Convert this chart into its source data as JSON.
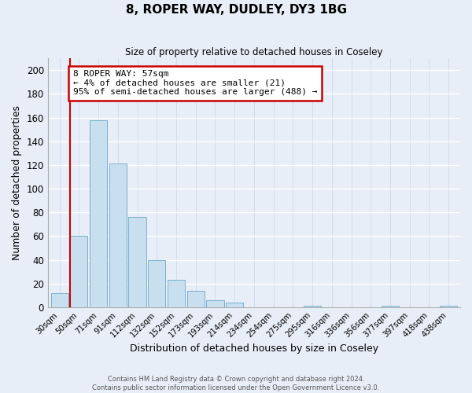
{
  "title": "8, ROPER WAY, DUDLEY, DY3 1BG",
  "subtitle": "Size of property relative to detached houses in Coseley",
  "xlabel": "Distribution of detached houses by size in Coseley",
  "ylabel": "Number of detached properties",
  "bar_labels": [
    "30sqm",
    "50sqm",
    "71sqm",
    "91sqm",
    "112sqm",
    "132sqm",
    "152sqm",
    "173sqm",
    "193sqm",
    "214sqm",
    "234sqm",
    "254sqm",
    "275sqm",
    "295sqm",
    "316sqm",
    "336sqm",
    "356sqm",
    "377sqm",
    "397sqm",
    "418sqm",
    "438sqm"
  ],
  "bar_heights": [
    12,
    60,
    158,
    121,
    76,
    40,
    23,
    14,
    6,
    4,
    0,
    0,
    0,
    1,
    0,
    0,
    0,
    1,
    0,
    0,
    1
  ],
  "bar_color": "#c8dff0",
  "bar_edgecolor": "#7ab0cc",
  "ylim": [
    0,
    210
  ],
  "yticks": [
    0,
    20,
    40,
    60,
    80,
    100,
    120,
    140,
    160,
    180,
    200
  ],
  "property_line_color": "#cc0000",
  "annotation_title": "8 ROPER WAY: 57sqm",
  "annotation_line1": "← 4% of detached houses are smaller (21)",
  "annotation_line2": "95% of semi-detached houses are larger (488) →",
  "annotation_box_color": "#ffffff",
  "annotation_box_edgecolor": "#cc0000",
  "footer_line1": "Contains HM Land Registry data © Crown copyright and database right 2024.",
  "footer_line2": "Contains public sector information licensed under the Open Government Licence v3.0.",
  "background_color": "#e8eef8",
  "grid_color": "#c8d4e8"
}
